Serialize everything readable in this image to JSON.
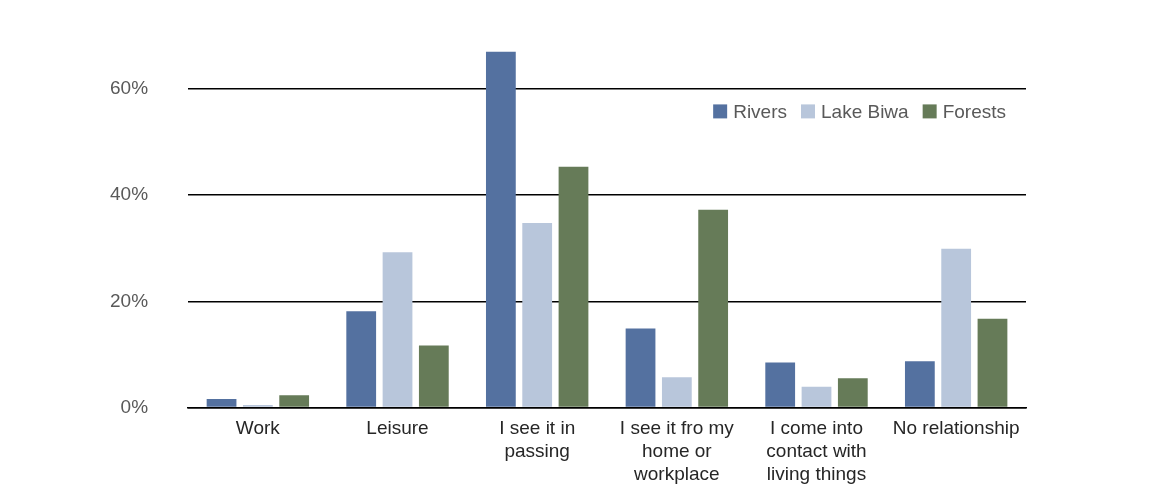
{
  "chart_data": {
    "type": "bar",
    "categories": [
      "Work",
      "Leisure",
      "I see it in passing",
      "I see it fro my home or workplace",
      "I come into contact with living things",
      "No relationship"
    ],
    "series": [
      {
        "name": "Rivers",
        "color": "#5471a0",
        "values": [
          1.6,
          18.1,
          67,
          14.9,
          8.5,
          8.7
        ]
      },
      {
        "name": "Lake Biwa",
        "color": "#b8c6db",
        "values": [
          0.5,
          29.2,
          34.7,
          5.7,
          3.9,
          29.9
        ]
      },
      {
        "name": "Forests",
        "color": "#667b58",
        "values": [
          2.3,
          11.7,
          45.3,
          37.2,
          5.5,
          16.7
        ]
      }
    ],
    "ylim": [
      0,
      67
    ],
    "yticks": [
      {
        "value": 0,
        "label": "0%"
      },
      {
        "value": 20,
        "label": "20%"
      },
      {
        "value": 40,
        "label": "40%"
      },
      {
        "value": 60,
        "label": "60%"
      }
    ],
    "grid": "y",
    "legend": "top right"
  }
}
